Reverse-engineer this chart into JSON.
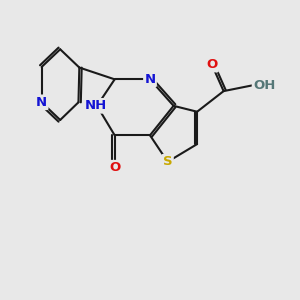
{
  "background_color": "#e8e8e8",
  "bond_color": "#1a1a1a",
  "bond_width": 1.5,
  "dbo": 0.08,
  "atom_colors": {
    "N": "#1414d4",
    "S": "#c8a800",
    "O": "#e01010",
    "H": "#557777"
  },
  "font_size": 9.5,
  "figsize": [
    3.0,
    3.0
  ],
  "dpi": 100
}
